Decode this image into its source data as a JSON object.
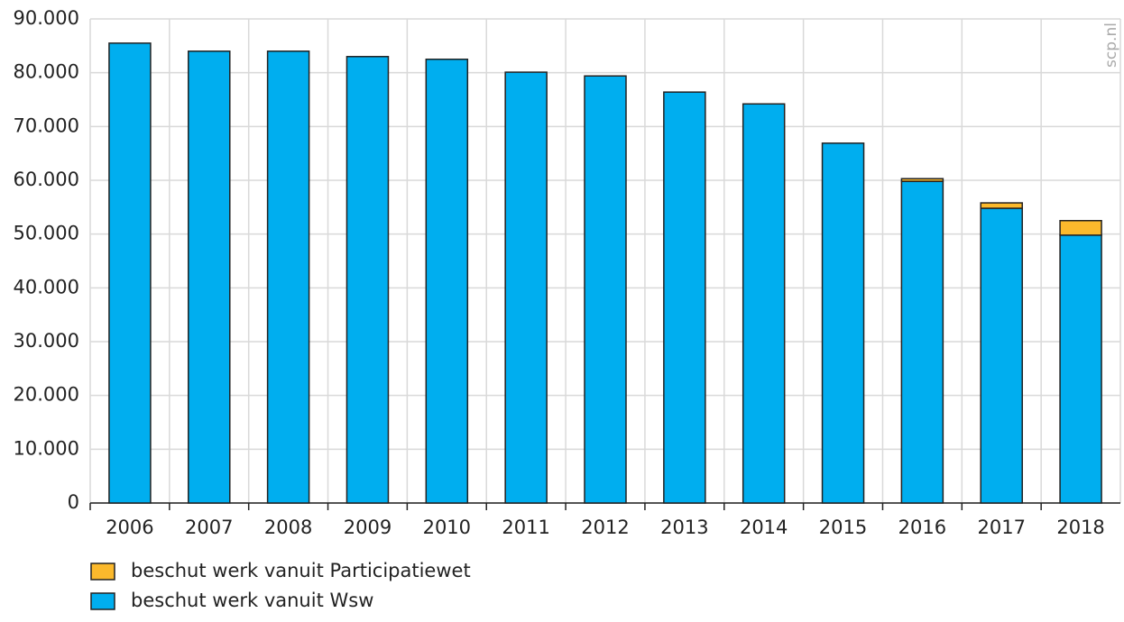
{
  "chart_data": {
    "type": "bar",
    "stacked": true,
    "watermark": "scp.nl",
    "categories": [
      "2006",
      "2007",
      "2008",
      "2009",
      "2010",
      "2011",
      "2012",
      "2013",
      "2014",
      "2015",
      "2016",
      "2017",
      "2018"
    ],
    "series": [
      {
        "name": "beschut werk vanuit Wsw",
        "color": "#00aeef",
        "values": [
          85500,
          84000,
          84000,
          83000,
          82500,
          80100,
          79400,
          76400,
          74200,
          66900,
          59800,
          54800,
          49800
        ]
      },
      {
        "name": "beschut werk vanuit Participatiewet",
        "color": "#fbb92c",
        "values": [
          0,
          0,
          0,
          0,
          0,
          0,
          0,
          0,
          0,
          0,
          500,
          1000,
          2700
        ]
      }
    ],
    "ylim": [
      0,
      90000
    ],
    "yticks": [
      0,
      {
        "value": 10000,
        "label": "10.000"
      },
      {
        "value": 20000,
        "label": "20.000"
      },
      {
        "value": 30000,
        "label": "30.000"
      },
      {
        "value": 40000,
        "label": "40.000"
      },
      {
        "value": 50000,
        "label": "50.000"
      },
      {
        "value": 60000,
        "label": "60.000"
      },
      {
        "value": 70000,
        "label": "70.000"
      },
      {
        "value": 80000,
        "label": "80.000"
      },
      {
        "value": 90000,
        "label": "90.000"
      }
    ],
    "grid": true
  }
}
